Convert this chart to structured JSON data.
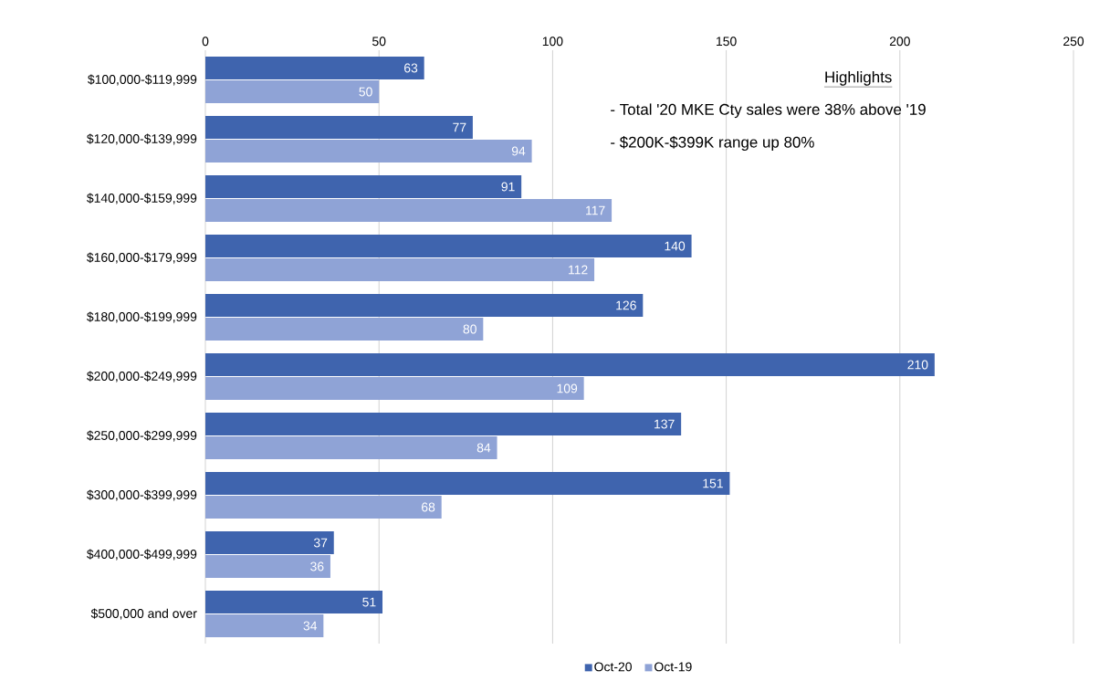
{
  "chart_data": {
    "type": "bar",
    "orientation": "horizontal",
    "categories": [
      "$100,000-$119,999",
      "$120,000-$139,999",
      "$140,000-$159,999",
      "$160,000-$179,999",
      "$180,000-$199,999",
      "$200,000-$249,999",
      "$250,000-$299,999",
      "$300,000-$399,999",
      "$400,000-$499,999",
      "$500,000 and over"
    ],
    "series": [
      {
        "name": "Oct-20",
        "color": "#3f64ae",
        "values": [
          63,
          77,
          91,
          140,
          126,
          210,
          137,
          151,
          37,
          51
        ]
      },
      {
        "name": "Oct-19",
        "color": "#8fa3d6",
        "values": [
          50,
          94,
          117,
          112,
          80,
          109,
          84,
          68,
          36,
          34
        ]
      }
    ],
    "xlim": [
      0,
      250
    ],
    "xticks": [
      0,
      50,
      100,
      150,
      200,
      250
    ],
    "grid": "x",
    "legend": "bottom",
    "data_labels": true,
    "annotations": [
      "Highlights",
      "- Total '20 MKE Cty sales were 38% above '19",
      "- $200K-$399K range up 80%"
    ]
  }
}
